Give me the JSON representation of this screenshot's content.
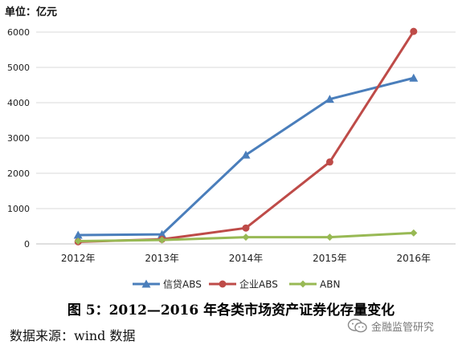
{
  "unit_label": "单位：亿元",
  "caption": "图 5：2012—2016 年各类市场资产证券化存量变化",
  "source": "数据来源：wind 数据",
  "watermark": {
    "icon": "wechat-icon",
    "text": "金融监管研究"
  },
  "chart_data": {
    "type": "line",
    "title": "",
    "xlabel": "",
    "ylabel": "",
    "categories": [
      "2012年",
      "2013年",
      "2014年",
      "2015年",
      "2016年"
    ],
    "ylim": [
      0,
      6000
    ],
    "yticks": [
      "0",
      "1000",
      "2000",
      "3000",
      "4000",
      "5000",
      "6000"
    ],
    "grid": "horizontal",
    "legend_position": "bottom",
    "series": [
      {
        "name": "信贷ABS",
        "values": [
          250,
          270,
          2520,
          4100,
          4700
        ],
        "color": "#4a7ebb",
        "marker": "triangle"
      },
      {
        "name": "企业ABS",
        "values": [
          60,
          130,
          450,
          2320,
          6020
        ],
        "color": "#be4b48",
        "marker": "circle"
      },
      {
        "name": "ABN",
        "values": [
          80,
          110,
          190,
          190,
          310
        ],
        "color": "#98b954",
        "marker": "diamond"
      }
    ]
  }
}
